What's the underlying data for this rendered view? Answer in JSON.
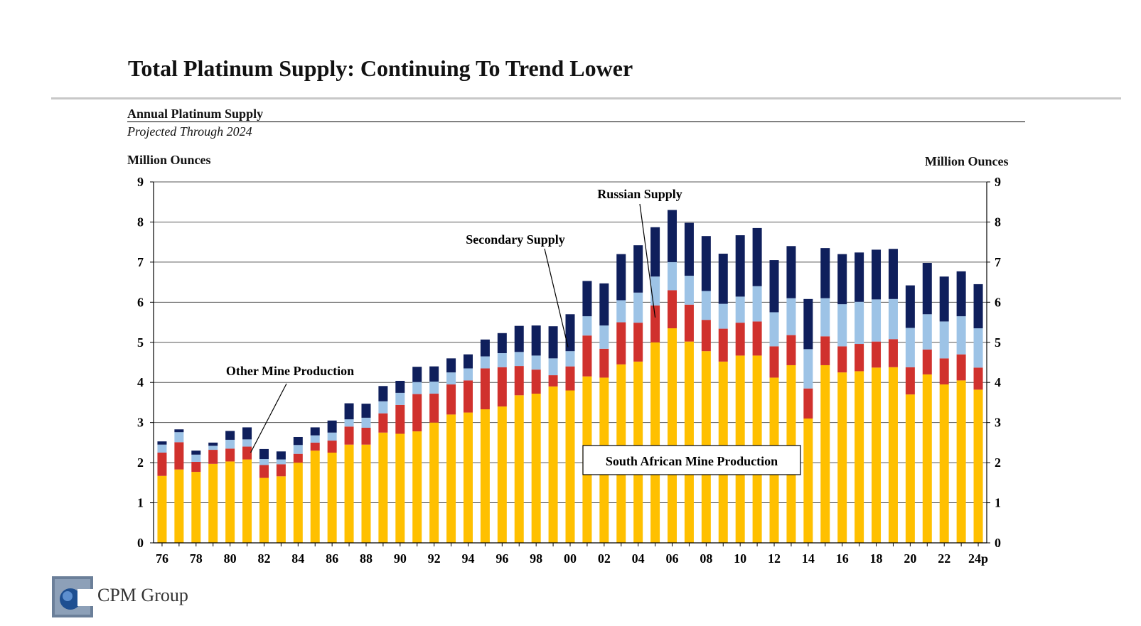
{
  "page": {
    "title": "Total Platinum Supply: Continuing To Trend Lower",
    "logo_text": "CPM Group"
  },
  "chart_data": {
    "type": "bar",
    "stacked": true,
    "title": "Annual Platinum Supply",
    "subtitle": "Projected Through 2024",
    "ylabel_left": "Million Ounces",
    "ylabel_right": "Million Ounces",
    "ylim": [
      0,
      9
    ],
    "yticks": [
      0,
      1,
      2,
      3,
      4,
      5,
      6,
      7,
      8,
      9
    ],
    "grid": true,
    "categories": [
      "76",
      "77",
      "78",
      "79",
      "80",
      "81",
      "82",
      "83",
      "84",
      "85",
      "86",
      "87",
      "88",
      "89",
      "90",
      "91",
      "92",
      "93",
      "94",
      "95",
      "96",
      "97",
      "98",
      "99",
      "00",
      "01",
      "02",
      "03",
      "04",
      "05",
      "06",
      "07",
      "08",
      "09",
      "10",
      "11",
      "12",
      "13",
      "14",
      "15",
      "16",
      "17",
      "18",
      "19",
      "20",
      "21",
      "22",
      "23",
      "24p"
    ],
    "xtick_labels": [
      "76",
      "",
      "78",
      "",
      "80",
      "",
      "82",
      "",
      "84",
      "",
      "86",
      "",
      "88",
      "",
      "90",
      "",
      "92",
      "",
      "94",
      "",
      "96",
      "",
      "98",
      "",
      "00",
      "",
      "02",
      "",
      "04",
      "",
      "06",
      "",
      "08",
      "",
      "10",
      "",
      "12",
      "",
      "14",
      "",
      "16",
      "",
      "18",
      "",
      "20",
      "",
      "22",
      "",
      "24p"
    ],
    "series": [
      {
        "name": "South African Mine Production",
        "color": "#FFC000",
        "values": [
          1.67,
          1.83,
          1.77,
          1.97,
          2.03,
          2.08,
          1.62,
          1.66,
          2.0,
          2.3,
          2.25,
          2.45,
          2.45,
          2.75,
          2.72,
          2.78,
          3.0,
          3.2,
          3.25,
          3.33,
          3.4,
          3.68,
          3.72,
          3.9,
          3.8,
          4.15,
          4.12,
          4.45,
          4.52,
          5.0,
          5.35,
          5.02,
          4.78,
          4.52,
          4.67,
          4.67,
          4.12,
          4.43,
          3.1,
          4.43,
          4.25,
          4.28,
          4.37,
          4.38,
          3.7,
          4.2,
          3.95,
          4.05,
          3.82
        ]
      },
      {
        "name": "Other Mine Production",
        "color": "#D0312D",
        "values": [
          0.58,
          0.68,
          0.25,
          0.35,
          0.32,
          0.32,
          0.32,
          0.3,
          0.22,
          0.2,
          0.3,
          0.45,
          0.42,
          0.48,
          0.72,
          0.93,
          0.72,
          0.75,
          0.8,
          1.02,
          0.98,
          0.73,
          0.6,
          0.28,
          0.6,
          1.02,
          0.72,
          1.05,
          0.97,
          0.92,
          0.95,
          0.92,
          0.78,
          0.82,
          0.82,
          0.85,
          0.78,
          0.75,
          0.75,
          0.72,
          0.65,
          0.68,
          0.65,
          0.7,
          0.68,
          0.62,
          0.65,
          0.65,
          0.55
        ]
      },
      {
        "name": "Secondary Supply",
        "color": "#9DC3E6",
        "values": [
          0.2,
          0.25,
          0.18,
          0.1,
          0.22,
          0.18,
          0.15,
          0.12,
          0.22,
          0.18,
          0.2,
          0.18,
          0.25,
          0.3,
          0.3,
          0.3,
          0.3,
          0.3,
          0.3,
          0.3,
          0.35,
          0.35,
          0.35,
          0.42,
          0.38,
          0.48,
          0.58,
          0.55,
          0.75,
          0.72,
          0.7,
          0.72,
          0.72,
          0.62,
          0.65,
          0.88,
          0.85,
          0.92,
          0.98,
          0.95,
          1.05,
          1.05,
          1.05,
          1.0,
          0.98,
          0.88,
          0.92,
          0.95,
          0.98
        ]
      },
      {
        "name": "Russian Supply",
        "color": "#0F1F5C",
        "values": [
          0.08,
          0.07,
          0.1,
          0.08,
          0.22,
          0.3,
          0.25,
          0.2,
          0.2,
          0.2,
          0.3,
          0.4,
          0.35,
          0.38,
          0.3,
          0.38,
          0.38,
          0.35,
          0.35,
          0.42,
          0.5,
          0.65,
          0.75,
          0.8,
          0.92,
          0.88,
          1.05,
          1.15,
          1.18,
          1.23,
          1.3,
          1.32,
          1.37,
          1.25,
          1.53,
          1.45,
          1.3,
          1.3,
          1.25,
          1.25,
          1.25,
          1.23,
          1.24,
          1.25,
          1.06,
          1.28,
          1.12,
          1.12,
          1.1
        ]
      }
    ],
    "annotations": [
      {
        "text": "Russian Supply",
        "points_to": "05"
      },
      {
        "text": "Secondary Supply",
        "points_to": "00"
      },
      {
        "text": "Other Mine Production",
        "points_to": "81"
      },
      {
        "text": "South African Mine Production",
        "boxed": true
      }
    ]
  }
}
